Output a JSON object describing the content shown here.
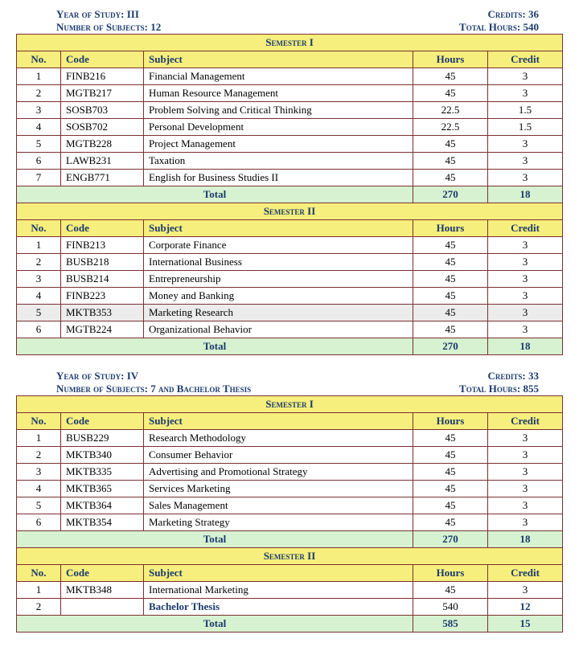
{
  "colors": {
    "header_text": "#1a3a6e",
    "border": "#7a3030",
    "yellow_band": "#f7ef7d",
    "green_total": "#d7f2d0",
    "highlight_row": "#ececec",
    "background": "#ffffff"
  },
  "blocks": [
    {
      "year_label": "Year of Study:",
      "year_value": "III",
      "credits_label": "Credits:",
      "credits_value": "36",
      "subjects_label": "Number of Subjects:",
      "subjects_value": "12",
      "hours_label": "Total Hours:",
      "hours_value": "540",
      "semesters": [
        {
          "title": "Semester I",
          "columns": {
            "no": "No.",
            "code": "Code",
            "subject": "Subject",
            "hours": "Hours",
            "credit": "Credit"
          },
          "rows": [
            {
              "no": "1",
              "code": "FINB216",
              "subject": "Financial Management",
              "hours": "45",
              "credit": "3"
            },
            {
              "no": "2",
              "code": "MGTB217",
              "subject": "Human Resource Management",
              "hours": "45",
              "credit": "3"
            },
            {
              "no": "3",
              "code": "SOSB703",
              "subject": "Problem Solving and Critical Thinking",
              "hours": "22.5",
              "credit": "1.5"
            },
            {
              "no": "4",
              "code": "SOSB702",
              "subject": "Personal Development",
              "hours": "22.5",
              "credit": "1.5"
            },
            {
              "no": "5",
              "code": "MGTB228",
              "subject": "Project Management",
              "hours": "45",
              "credit": "3"
            },
            {
              "no": "6",
              "code": "LAWB231",
              "subject": "Taxation",
              "hours": "45",
              "credit": "3"
            },
            {
              "no": "7",
              "code": "ENGB771",
              "subject": "English for Business Studies II",
              "hours": "45",
              "credit": "3"
            }
          ],
          "total": {
            "label": "Total",
            "hours": "270",
            "credit": "18"
          }
        },
        {
          "title": "Semester II",
          "columns": {
            "no": "No.",
            "code": "Code",
            "subject": "Subject",
            "hours": "Hours",
            "credit": "Credit"
          },
          "rows": [
            {
              "no": "1",
              "code": "FINB213",
              "subject": "Corporate Finance",
              "hours": "45",
              "credit": "3"
            },
            {
              "no": "2",
              "code": "BUSB218",
              "subject": "International Business",
              "hours": "45",
              "credit": "3"
            },
            {
              "no": "3",
              "code": "BUSB214",
              "subject": "Entrepreneurship",
              "hours": "45",
              "credit": "3"
            },
            {
              "no": "4",
              "code": "FINB223",
              "subject": "Money and Banking",
              "hours": "45",
              "credit": "3"
            },
            {
              "no": "5",
              "code": "MKTB353",
              "subject": "Marketing Research",
              "hours": "45",
              "credit": "3",
              "highlight": true
            },
            {
              "no": "6",
              "code": "MGTB224",
              "subject": "Organizational Behavior",
              "hours": "45",
              "credit": "3"
            }
          ],
          "total": {
            "label": "Total",
            "hours": "270",
            "credit": "18"
          }
        }
      ]
    },
    {
      "year_label": "Year of Study:",
      "year_value": "IV",
      "credits_label": "Credits:",
      "credits_value": "33",
      "subjects_label": "Number of Subjects:",
      "subjects_value": "7 and Bachelor Thesis",
      "hours_label": "Total Hours:",
      "hours_value": "855",
      "semesters": [
        {
          "title": "Semester I",
          "columns": {
            "no": "No.",
            "code": "Code",
            "subject": "Subject",
            "hours": "Hours",
            "credit": "Credit"
          },
          "rows": [
            {
              "no": "1",
              "code": "BUSB229",
              "subject": "Research Methodology",
              "hours": "45",
              "credit": "3"
            },
            {
              "no": "2",
              "code": "MKTB340",
              "subject": "Consumer Behavior",
              "hours": "45",
              "credit": "3"
            },
            {
              "no": "3",
              "code": "MKTB335",
              "subject": "Advertising and Promotional Strategy",
              "hours": "45",
              "credit": "3"
            },
            {
              "no": "4",
              "code": "MKTB365",
              "subject": "Services Marketing",
              "hours": "45",
              "credit": "3"
            },
            {
              "no": "5",
              "code": "MKTB364",
              "subject": "Sales Management",
              "hours": "45",
              "credit": "3"
            },
            {
              "no": "6",
              "code": "MKTB354",
              "subject": "Marketing Strategy",
              "hours": "45",
              "credit": "3"
            }
          ],
          "total": {
            "label": "Total",
            "hours": "270",
            "credit": "18"
          }
        },
        {
          "title": "Semester II",
          "columns": {
            "no": "No.",
            "code": "Code",
            "subject": "Subject",
            "hours": "Hours",
            "credit": "Credit"
          },
          "rows": [
            {
              "no": "1",
              "code": "MKTB348",
              "subject": "International Marketing",
              "hours": "45",
              "credit": "3"
            },
            {
              "no": "2",
              "code": "",
              "subject": "Bachelor Thesis",
              "hours": "540",
              "credit": "12",
              "boldSubject": true,
              "boldCredit": true
            }
          ],
          "total": {
            "label": "Total",
            "hours": "585",
            "credit": "15"
          }
        }
      ]
    }
  ]
}
